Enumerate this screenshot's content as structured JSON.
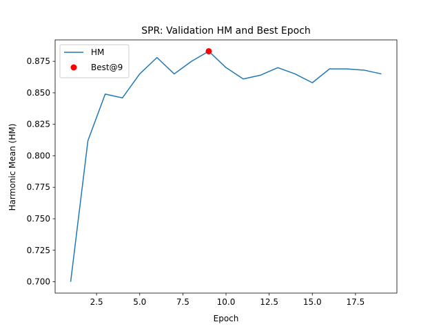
{
  "chart_data": {
    "type": "line",
    "title": "SPR: Validation HM and Best Epoch",
    "xlabel": "Epoch",
    "ylabel": "Harmonic Mean (HM)",
    "xlim": [
      0.1,
      19.9
    ],
    "ylim": [
      0.691,
      0.892
    ],
    "x_ticks": [
      2.5,
      5.0,
      7.5,
      10.0,
      12.5,
      15.0,
      17.5
    ],
    "x_tick_labels": [
      "2.5",
      "5.0",
      "7.5",
      "10.0",
      "12.5",
      "15.0",
      "17.5"
    ],
    "y_ticks": [
      0.7,
      0.725,
      0.75,
      0.775,
      0.8,
      0.825,
      0.85,
      0.875
    ],
    "y_tick_labels": [
      "0.700",
      "0.725",
      "0.750",
      "0.775",
      "0.800",
      "0.825",
      "0.850",
      "0.875"
    ],
    "grid": false,
    "legend_position": "upper-left",
    "series": [
      {
        "name": "HM",
        "color": "#1f77b4",
        "x": [
          1,
          2,
          3,
          4,
          5,
          6,
          7,
          8,
          9,
          10,
          11,
          12,
          13,
          14,
          15,
          16,
          17,
          18,
          19
        ],
        "values": [
          0.7,
          0.812,
          0.849,
          0.846,
          0.865,
          0.878,
          0.865,
          0.875,
          0.883,
          0.87,
          0.861,
          0.864,
          0.87,
          0.865,
          0.858,
          0.869,
          0.869,
          0.868,
          0.865
        ]
      }
    ],
    "markers": [
      {
        "name": "Best@9",
        "color": "#ff0000",
        "x": 9,
        "y": 0.883
      }
    ]
  }
}
